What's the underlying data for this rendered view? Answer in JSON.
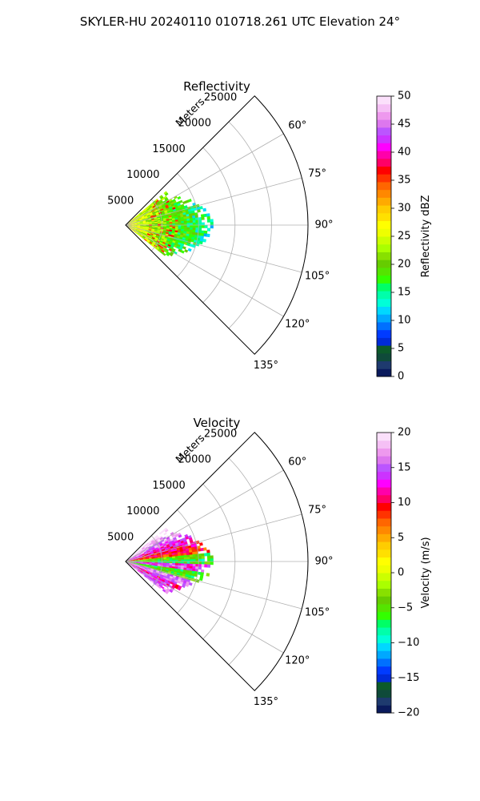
{
  "figure": {
    "suptitle": "SKYLER-HU  20240110  010718.261 UTC Elevation 24°"
  },
  "chart_data": [
    {
      "type": "heatmap",
      "title": "Reflectivity",
      "projection": "polar-sector",
      "theta_ticks_deg": [
        60,
        75,
        90,
        105,
        120,
        135
      ],
      "theta_tick_labels": [
        "60°",
        "75°",
        "90°",
        "105°",
        "120°",
        "135°"
      ],
      "theta_range_deg": [
        45,
        135
      ],
      "r_label": "Meters",
      "r_ticks": [
        5000,
        10000,
        15000,
        20000,
        25000
      ],
      "r_tick_labels": [
        "5000",
        "10000",
        "15000",
        "20000",
        "25000"
      ],
      "r_max": 25000,
      "data_extent": {
        "theta_deg": [
          50,
          128
        ],
        "r_max_m": 12000
      },
      "grid": true,
      "colorbar": {
        "label": "Reflectivity dBZ",
        "range": [
          0,
          50
        ],
        "ticks": [
          0,
          5,
          10,
          15,
          20,
          25,
          30,
          35,
          40,
          45,
          50
        ],
        "tick_labels": [
          "0",
          "5",
          "10",
          "15",
          "20",
          "25",
          "30",
          "35",
          "40",
          "45",
          "50"
        ],
        "colors": [
          "#0a1a5c",
          "#1e3a6e",
          "#0f4a3a",
          "#0c5a2a",
          "#002bd8",
          "#003bff",
          "#0070ff",
          "#00a8ff",
          "#00d8ff",
          "#00ffd8",
          "#00ffaa",
          "#00ff66",
          "#33ff00",
          "#55e400",
          "#66cc00",
          "#88e000",
          "#aaff00",
          "#ccff00",
          "#eeff00",
          "#ffff00",
          "#ffe000",
          "#ffcc00",
          "#ffaa00",
          "#ff8800",
          "#ff6600",
          "#ff3300",
          "#ff0000",
          "#ff0066",
          "#ff00aa",
          "#ff00ff",
          "#cc33ff",
          "#bb55ff",
          "#dd77ee",
          "#ee99ee",
          "#f5c0f5",
          "#fbe0fb"
        ]
      }
    },
    {
      "type": "heatmap",
      "title": "Velocity",
      "projection": "polar-sector",
      "theta_ticks_deg": [
        60,
        75,
        90,
        105,
        120,
        135
      ],
      "theta_tick_labels": [
        "60°",
        "75°",
        "90°",
        "105°",
        "120°",
        "135°"
      ],
      "theta_range_deg": [
        45,
        135
      ],
      "r_label": "Meters",
      "r_ticks": [
        5000,
        10000,
        15000,
        20000,
        25000
      ],
      "r_tick_labels": [
        "5000",
        "10000",
        "15000",
        "20000",
        "25000"
      ],
      "r_max": 25000,
      "data_extent": {
        "theta_deg": [
          50,
          128
        ],
        "r_max_m": 12000
      },
      "grid": true,
      "colorbar": {
        "label": "Velocity (m/s)",
        "range": [
          -20,
          20
        ],
        "ticks": [
          -20,
          -15,
          -10,
          -5,
          0,
          5,
          10,
          15,
          20
        ],
        "tick_labels": [
          "−20",
          "−15",
          "−10",
          "−5",
          "0",
          "5",
          "10",
          "15",
          "20"
        ],
        "colors": [
          "#0a1a5c",
          "#1e3a6e",
          "#0f4a3a",
          "#0c5a2a",
          "#002bd8",
          "#003bff",
          "#0070ff",
          "#00a8ff",
          "#00d8ff",
          "#00ffd8",
          "#00ffaa",
          "#00ff66",
          "#33ff00",
          "#55e400",
          "#66cc00",
          "#88e000",
          "#aaff00",
          "#ccff00",
          "#eeff00",
          "#ffff00",
          "#ffe000",
          "#ffcc00",
          "#ffaa00",
          "#ff8800",
          "#ff6600",
          "#ff3300",
          "#ff0000",
          "#ff0066",
          "#ff00aa",
          "#ff00ff",
          "#cc33ff",
          "#bb55ff",
          "#dd77ee",
          "#ee99ee",
          "#f5c0f5",
          "#fbe0fb"
        ]
      }
    }
  ]
}
